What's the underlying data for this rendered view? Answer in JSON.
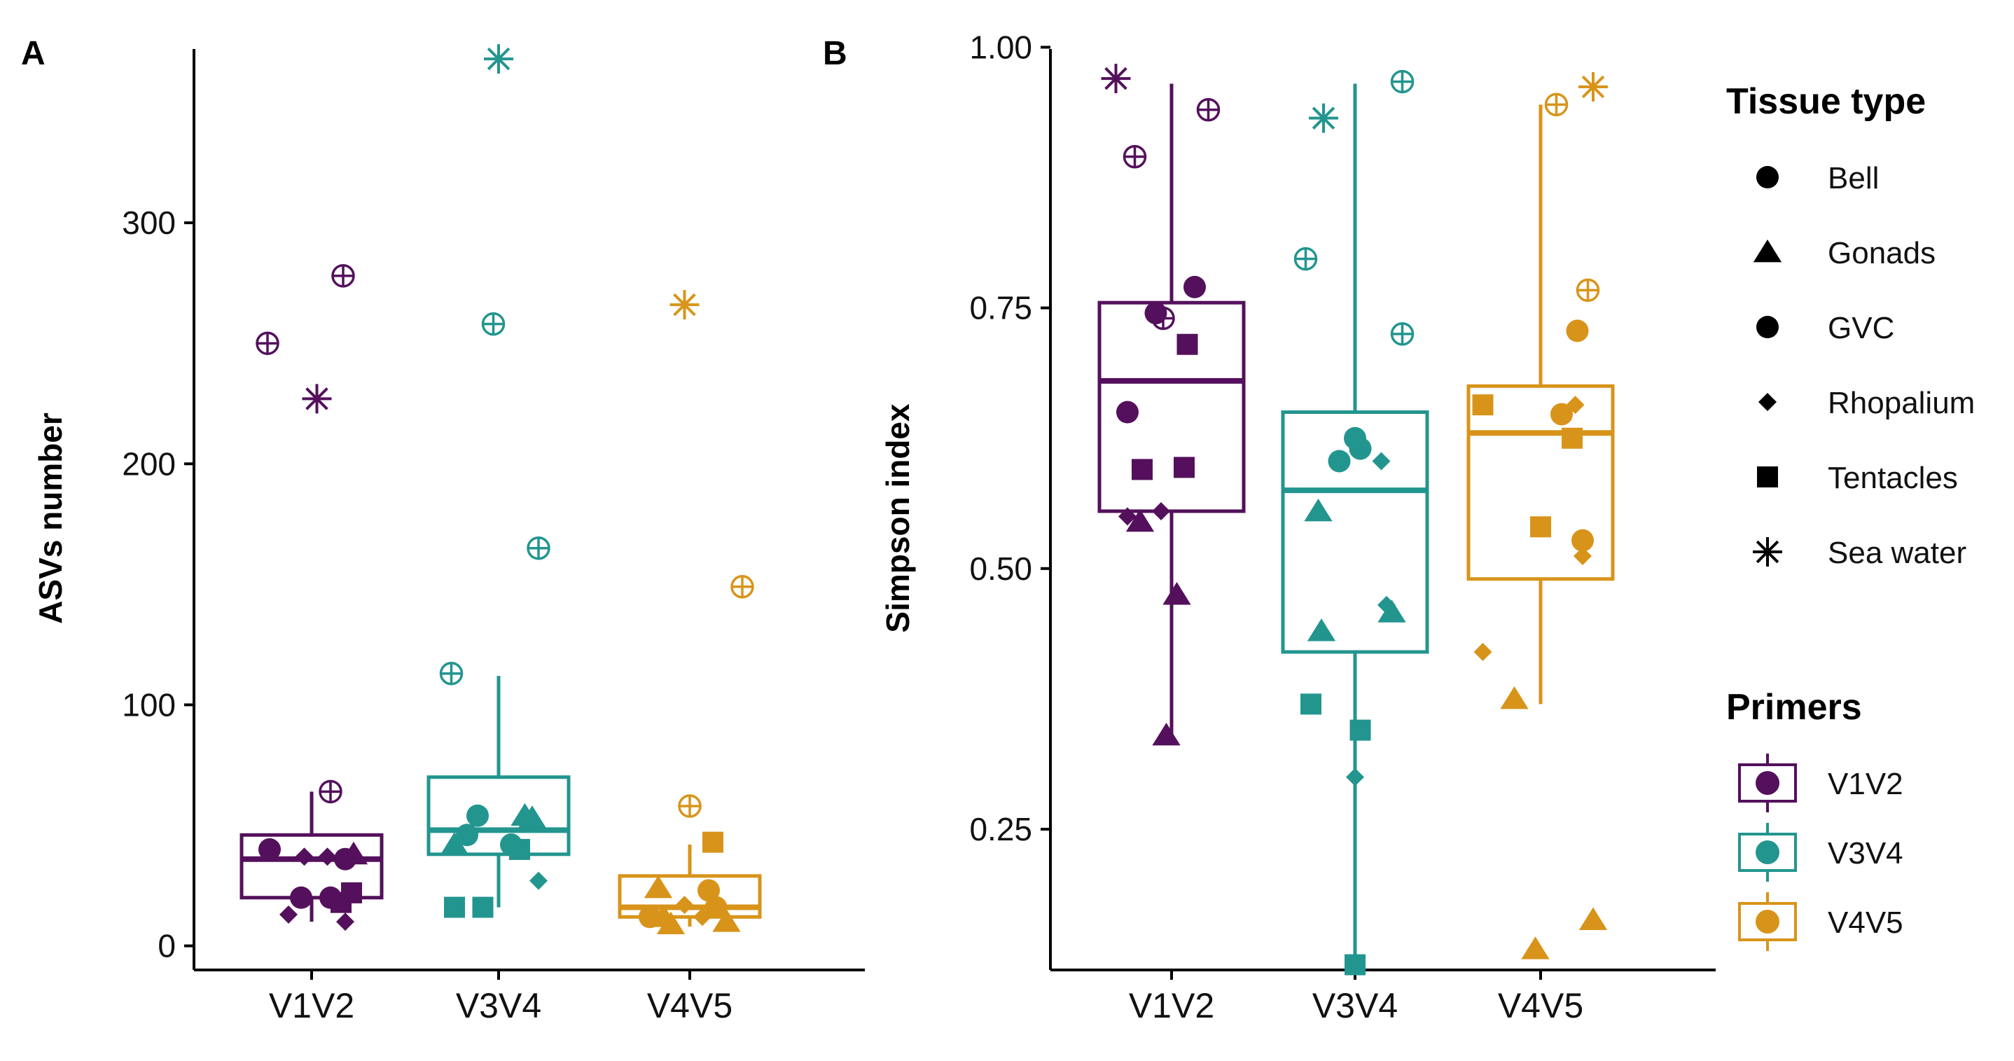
{
  "colors": {
    "V1V2": "#54105c",
    "V3V4": "#23958f",
    "V4V5": "#d8941a",
    "axis": "#000000"
  },
  "legend": {
    "tissue_title": "Tissue type",
    "tissue_items": [
      {
        "label": "Bell",
        "shape": "circle"
      },
      {
        "label": "Gonads",
        "shape": "triangle"
      },
      {
        "label": "GVC",
        "shape": "circle"
      },
      {
        "label": "Rhopalium",
        "shape": "diamond"
      },
      {
        "label": "Tentacles",
        "shape": "square"
      },
      {
        "label": "Sea water",
        "shape": "star"
      }
    ],
    "primers_title": "Primers",
    "primer_items": [
      "V1V2",
      "V3V4",
      "V4V5"
    ]
  },
  "chart_data": [
    {
      "type": "box",
      "panel": "A",
      "ylabel": "ASVs number",
      "xlabel": "",
      "categories": [
        "V1V2",
        "V3V4",
        "V4V5"
      ],
      "ylim": [
        -10,
        375
      ],
      "yticks": [
        0,
        100,
        200,
        300
      ],
      "boxes": [
        {
          "category": "V1V2",
          "whisker_low": 10,
          "q1": 20,
          "median": 36,
          "q3": 46,
          "whisker_high": 64
        },
        {
          "category": "V3V4",
          "whisker_low": 16,
          "q1": 38,
          "median": 48,
          "q3": 70,
          "whisker_high": 112
        },
        {
          "category": "V4V5",
          "whisker_low": 8,
          "q1": 12,
          "median": 16,
          "q3": 29,
          "whisker_high": 42
        }
      ],
      "points": [
        {
          "cat": "V1V2",
          "j": -0.4,
          "y": 40,
          "shape": "circle"
        },
        {
          "cat": "V1V2",
          "j": -0.1,
          "y": 20,
          "shape": "circle"
        },
        {
          "cat": "V1V2",
          "j": -0.22,
          "y": 13,
          "shape": "diamond"
        },
        {
          "cat": "V1V2",
          "j": 0.18,
          "y": 20,
          "shape": "circle"
        },
        {
          "cat": "V1V2",
          "j": 0.28,
          "y": 18,
          "shape": "square"
        },
        {
          "cat": "V1V2",
          "j": 0.38,
          "y": 22,
          "shape": "square"
        },
        {
          "cat": "V1V2",
          "j": 0.32,
          "y": 10,
          "shape": "diamond"
        },
        {
          "cat": "V1V2",
          "j": 0.32,
          "y": 36,
          "shape": "circle"
        },
        {
          "cat": "V1V2",
          "j": 0.4,
          "y": 38,
          "shape": "triangle"
        },
        {
          "cat": "V1V2",
          "j": -0.07,
          "y": 37,
          "shape": "diamond"
        },
        {
          "cat": "V1V2",
          "j": 0.15,
          "y": 37,
          "shape": "diamond"
        },
        {
          "cat": "V1V2",
          "j": 0.18,
          "y": 64,
          "shape": "oplus"
        },
        {
          "cat": "V1V2",
          "j": -0.42,
          "y": 250,
          "shape": "oplus"
        },
        {
          "cat": "V1V2",
          "j": 0.3,
          "y": 278,
          "shape": "oplus"
        },
        {
          "cat": "V1V2",
          "j": 0.05,
          "y": 227,
          "shape": "star"
        },
        {
          "cat": "V3V4",
          "j": -0.42,
          "y": 42,
          "shape": "triangle"
        },
        {
          "cat": "V3V4",
          "j": -0.3,
          "y": 46,
          "shape": "circle"
        },
        {
          "cat": "V3V4",
          "j": -0.2,
          "y": 54,
          "shape": "circle"
        },
        {
          "cat": "V3V4",
          "j": -0.42,
          "y": 16,
          "shape": "square"
        },
        {
          "cat": "V3V4",
          "j": -0.15,
          "y": 16,
          "shape": "square"
        },
        {
          "cat": "V3V4",
          "j": 0.12,
          "y": 42,
          "shape": "circle"
        },
        {
          "cat": "V3V4",
          "j": 0.2,
          "y": 40,
          "shape": "square"
        },
        {
          "cat": "V3V4",
          "j": 0.25,
          "y": 54,
          "shape": "triangle"
        },
        {
          "cat": "V3V4",
          "j": 0.32,
          "y": 53,
          "shape": "triangle"
        },
        {
          "cat": "V3V4",
          "j": 0.38,
          "y": 27,
          "shape": "diamond"
        },
        {
          "cat": "V3V4",
          "j": -0.45,
          "y": 113,
          "shape": "oplus"
        },
        {
          "cat": "V3V4",
          "j": -0.05,
          "y": 258,
          "shape": "oplus"
        },
        {
          "cat": "V3V4",
          "j": 0.38,
          "y": 165,
          "shape": "oplus"
        },
        {
          "cat": "V3V4",
          "j": 0.0,
          "y": 368,
          "shape": "star"
        },
        {
          "cat": "V4V5",
          "j": -0.38,
          "y": 12,
          "shape": "circle"
        },
        {
          "cat": "V4V5",
          "j": -0.3,
          "y": 24,
          "shape": "triangle"
        },
        {
          "cat": "V4V5",
          "j": -0.25,
          "y": 12,
          "shape": "triangle"
        },
        {
          "cat": "V4V5",
          "j": -0.18,
          "y": 9,
          "shape": "triangle"
        },
        {
          "cat": "V4V5",
          "j": -0.05,
          "y": 17,
          "shape": "diamond"
        },
        {
          "cat": "V4V5",
          "j": 0.12,
          "y": 12,
          "shape": "diamond"
        },
        {
          "cat": "V4V5",
          "j": 0.18,
          "y": 23,
          "shape": "circle"
        },
        {
          "cat": "V4V5",
          "j": 0.25,
          "y": 16,
          "shape": "circle"
        },
        {
          "cat": "V4V5",
          "j": 0.35,
          "y": 10,
          "shape": "triangle"
        },
        {
          "cat": "V4V5",
          "j": 0.22,
          "y": 43,
          "shape": "square"
        },
        {
          "cat": "V4V5",
          "j": 0.0,
          "y": 58,
          "shape": "oplus"
        },
        {
          "cat": "V4V5",
          "j": 0.5,
          "y": 149,
          "shape": "oplus"
        },
        {
          "cat": "V4V5",
          "j": -0.05,
          "y": 266,
          "shape": "star"
        }
      ]
    },
    {
      "type": "box",
      "panel": "B",
      "ylabel": "Simpson index",
      "xlabel": "",
      "categories": [
        "V1V2",
        "V3V4",
        "V4V5"
      ],
      "ylim": [
        0.115,
        1.005
      ],
      "yticks": [
        0.25,
        0.5,
        0.75,
        1.0
      ],
      "ytick_labels": [
        "0.25",
        "0.50",
        "0.75",
        "1.00"
      ],
      "boxes": [
        {
          "category": "V1V2",
          "whisker_low": 0.34,
          "q1": 0.555,
          "median": 0.68,
          "q3": 0.755,
          "whisker_high": 0.965
        },
        {
          "category": "V3V4",
          "whisker_low": 0.12,
          "q1": 0.42,
          "median": 0.575,
          "q3": 0.65,
          "whisker_high": 0.965
        },
        {
          "category": "V4V5",
          "whisker_low": 0.37,
          "q1": 0.49,
          "median": 0.63,
          "q3": 0.675,
          "whisker_high": 0.945
        }
      ],
      "points": [
        {
          "cat": "V1V2",
          "j": -0.42,
          "y": 0.55,
          "shape": "diamond"
        },
        {
          "cat": "V1V2",
          "j": -0.3,
          "y": 0.545,
          "shape": "triangle"
        },
        {
          "cat": "V1V2",
          "j": -0.1,
          "y": 0.555,
          "shape": "diamond"
        },
        {
          "cat": "V1V2",
          "j": -0.42,
          "y": 0.65,
          "shape": "circle"
        },
        {
          "cat": "V1V2",
          "j": -0.28,
          "y": 0.595,
          "shape": "square"
        },
        {
          "cat": "V1V2",
          "j": 0.12,
          "y": 0.597,
          "shape": "square"
        },
        {
          "cat": "V1V2",
          "j": -0.15,
          "y": 0.745,
          "shape": "circle"
        },
        {
          "cat": "V1V2",
          "j": -0.14,
          "y": 0.745,
          "shape": "diamond"
        },
        {
          "cat": "V1V2",
          "j": 0.15,
          "y": 0.715,
          "shape": "square"
        },
        {
          "cat": "V1V2",
          "j": 0.22,
          "y": 0.77,
          "shape": "circle"
        },
        {
          "cat": "V1V2",
          "j": 0.05,
          "y": 0.475,
          "shape": "triangle"
        },
        {
          "cat": "V1V2",
          "j": -0.05,
          "y": 0.34,
          "shape": "triangle"
        },
        {
          "cat": "V1V2",
          "j": -0.08,
          "y": 0.74,
          "shape": "oplus"
        },
        {
          "cat": "V1V2",
          "j": -0.35,
          "y": 0.895,
          "shape": "oplus"
        },
        {
          "cat": "V1V2",
          "j": 0.35,
          "y": 0.94,
          "shape": "oplus"
        },
        {
          "cat": "V1V2",
          "j": -0.53,
          "y": 0.97,
          "shape": "star"
        },
        {
          "cat": "V3V4",
          "j": -0.35,
          "y": 0.555,
          "shape": "triangle"
        },
        {
          "cat": "V3V4",
          "j": -0.32,
          "y": 0.44,
          "shape": "triangle"
        },
        {
          "cat": "V3V4",
          "j": -0.42,
          "y": 0.37,
          "shape": "square"
        },
        {
          "cat": "V3V4",
          "j": -0.15,
          "y": 0.603,
          "shape": "circle"
        },
        {
          "cat": "V3V4",
          "j": 0.0,
          "y": 0.625,
          "shape": "circle"
        },
        {
          "cat": "V3V4",
          "j": 0.05,
          "y": 0.615,
          "shape": "circle"
        },
        {
          "cat": "V3V4",
          "j": 0.25,
          "y": 0.603,
          "shape": "diamond"
        },
        {
          "cat": "V3V4",
          "j": 0.3,
          "y": 0.465,
          "shape": "diamond"
        },
        {
          "cat": "V3V4",
          "j": 0.35,
          "y": 0.458,
          "shape": "triangle"
        },
        {
          "cat": "V3V4",
          "j": 0.05,
          "y": 0.345,
          "shape": "square"
        },
        {
          "cat": "V3V4",
          "j": 0.0,
          "y": 0.3,
          "shape": "diamond"
        },
        {
          "cat": "V3V4",
          "j": 0.0,
          "y": 0.12,
          "shape": "square"
        },
        {
          "cat": "V3V4",
          "j": -0.47,
          "y": 0.797,
          "shape": "oplus"
        },
        {
          "cat": "V3V4",
          "j": 0.45,
          "y": 0.725,
          "shape": "oplus"
        },
        {
          "cat": "V3V4",
          "j": 0.45,
          "y": 0.967,
          "shape": "oplus"
        },
        {
          "cat": "V3V4",
          "j": -0.3,
          "y": 0.932,
          "shape": "star"
        },
        {
          "cat": "V4V5",
          "j": -0.55,
          "y": 0.42,
          "shape": "diamond"
        },
        {
          "cat": "V4V5",
          "j": -0.25,
          "y": 0.375,
          "shape": "triangle"
        },
        {
          "cat": "V4V5",
          "j": -0.05,
          "y": 0.135,
          "shape": "triangle"
        },
        {
          "cat": "V4V5",
          "j": 0.5,
          "y": 0.163,
          "shape": "triangle"
        },
        {
          "cat": "V4V5",
          "j": -0.55,
          "y": 0.657,
          "shape": "square"
        },
        {
          "cat": "V4V5",
          "j": 0.0,
          "y": 0.54,
          "shape": "square"
        },
        {
          "cat": "V4V5",
          "j": 0.2,
          "y": 0.648,
          "shape": "circle"
        },
        {
          "cat": "V4V5",
          "j": 0.3,
          "y": 0.625,
          "shape": "square"
        },
        {
          "cat": "V4V5",
          "j": 0.33,
          "y": 0.657,
          "shape": "diamond"
        },
        {
          "cat": "V4V5",
          "j": 0.35,
          "y": 0.728,
          "shape": "circle"
        },
        {
          "cat": "V4V5",
          "j": 0.4,
          "y": 0.527,
          "shape": "circle"
        },
        {
          "cat": "V4V5",
          "j": 0.4,
          "y": 0.512,
          "shape": "diamond"
        },
        {
          "cat": "V4V5",
          "j": 0.15,
          "y": 0.945,
          "shape": "oplus"
        },
        {
          "cat": "V4V5",
          "j": 0.45,
          "y": 0.767,
          "shape": "oplus"
        },
        {
          "cat": "V4V5",
          "j": 0.5,
          "y": 0.962,
          "shape": "star"
        }
      ]
    }
  ]
}
